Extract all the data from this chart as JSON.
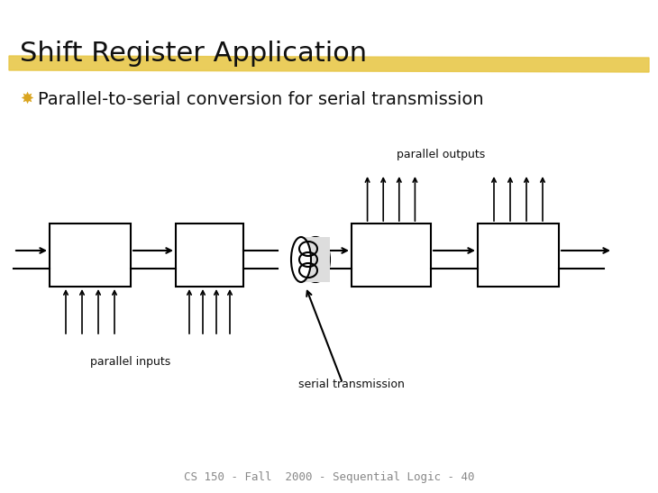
{
  "title": "Shift Register Application",
  "title_fontsize": 22,
  "title_font": "Comic Sans MS",
  "bullet_char": "✸",
  "bullet_color": "#DAA520",
  "bullet_text": "Parallel-to-serial conversion for serial transmission",
  "bullet_fontsize": 14,
  "footer": "CS 150 - Fall  2000 - Sequential Logic - 40",
  "footer_fontsize": 9,
  "bg_color": "#FFFFFF",
  "highlight_color": "#E8C84A",
  "line_color": "#000000",
  "label_parallel_outputs": "parallel outputs",
  "label_parallel_inputs": "parallel inputs",
  "label_serial_transmission": "serial transmission",
  "label_fontsize": 9
}
